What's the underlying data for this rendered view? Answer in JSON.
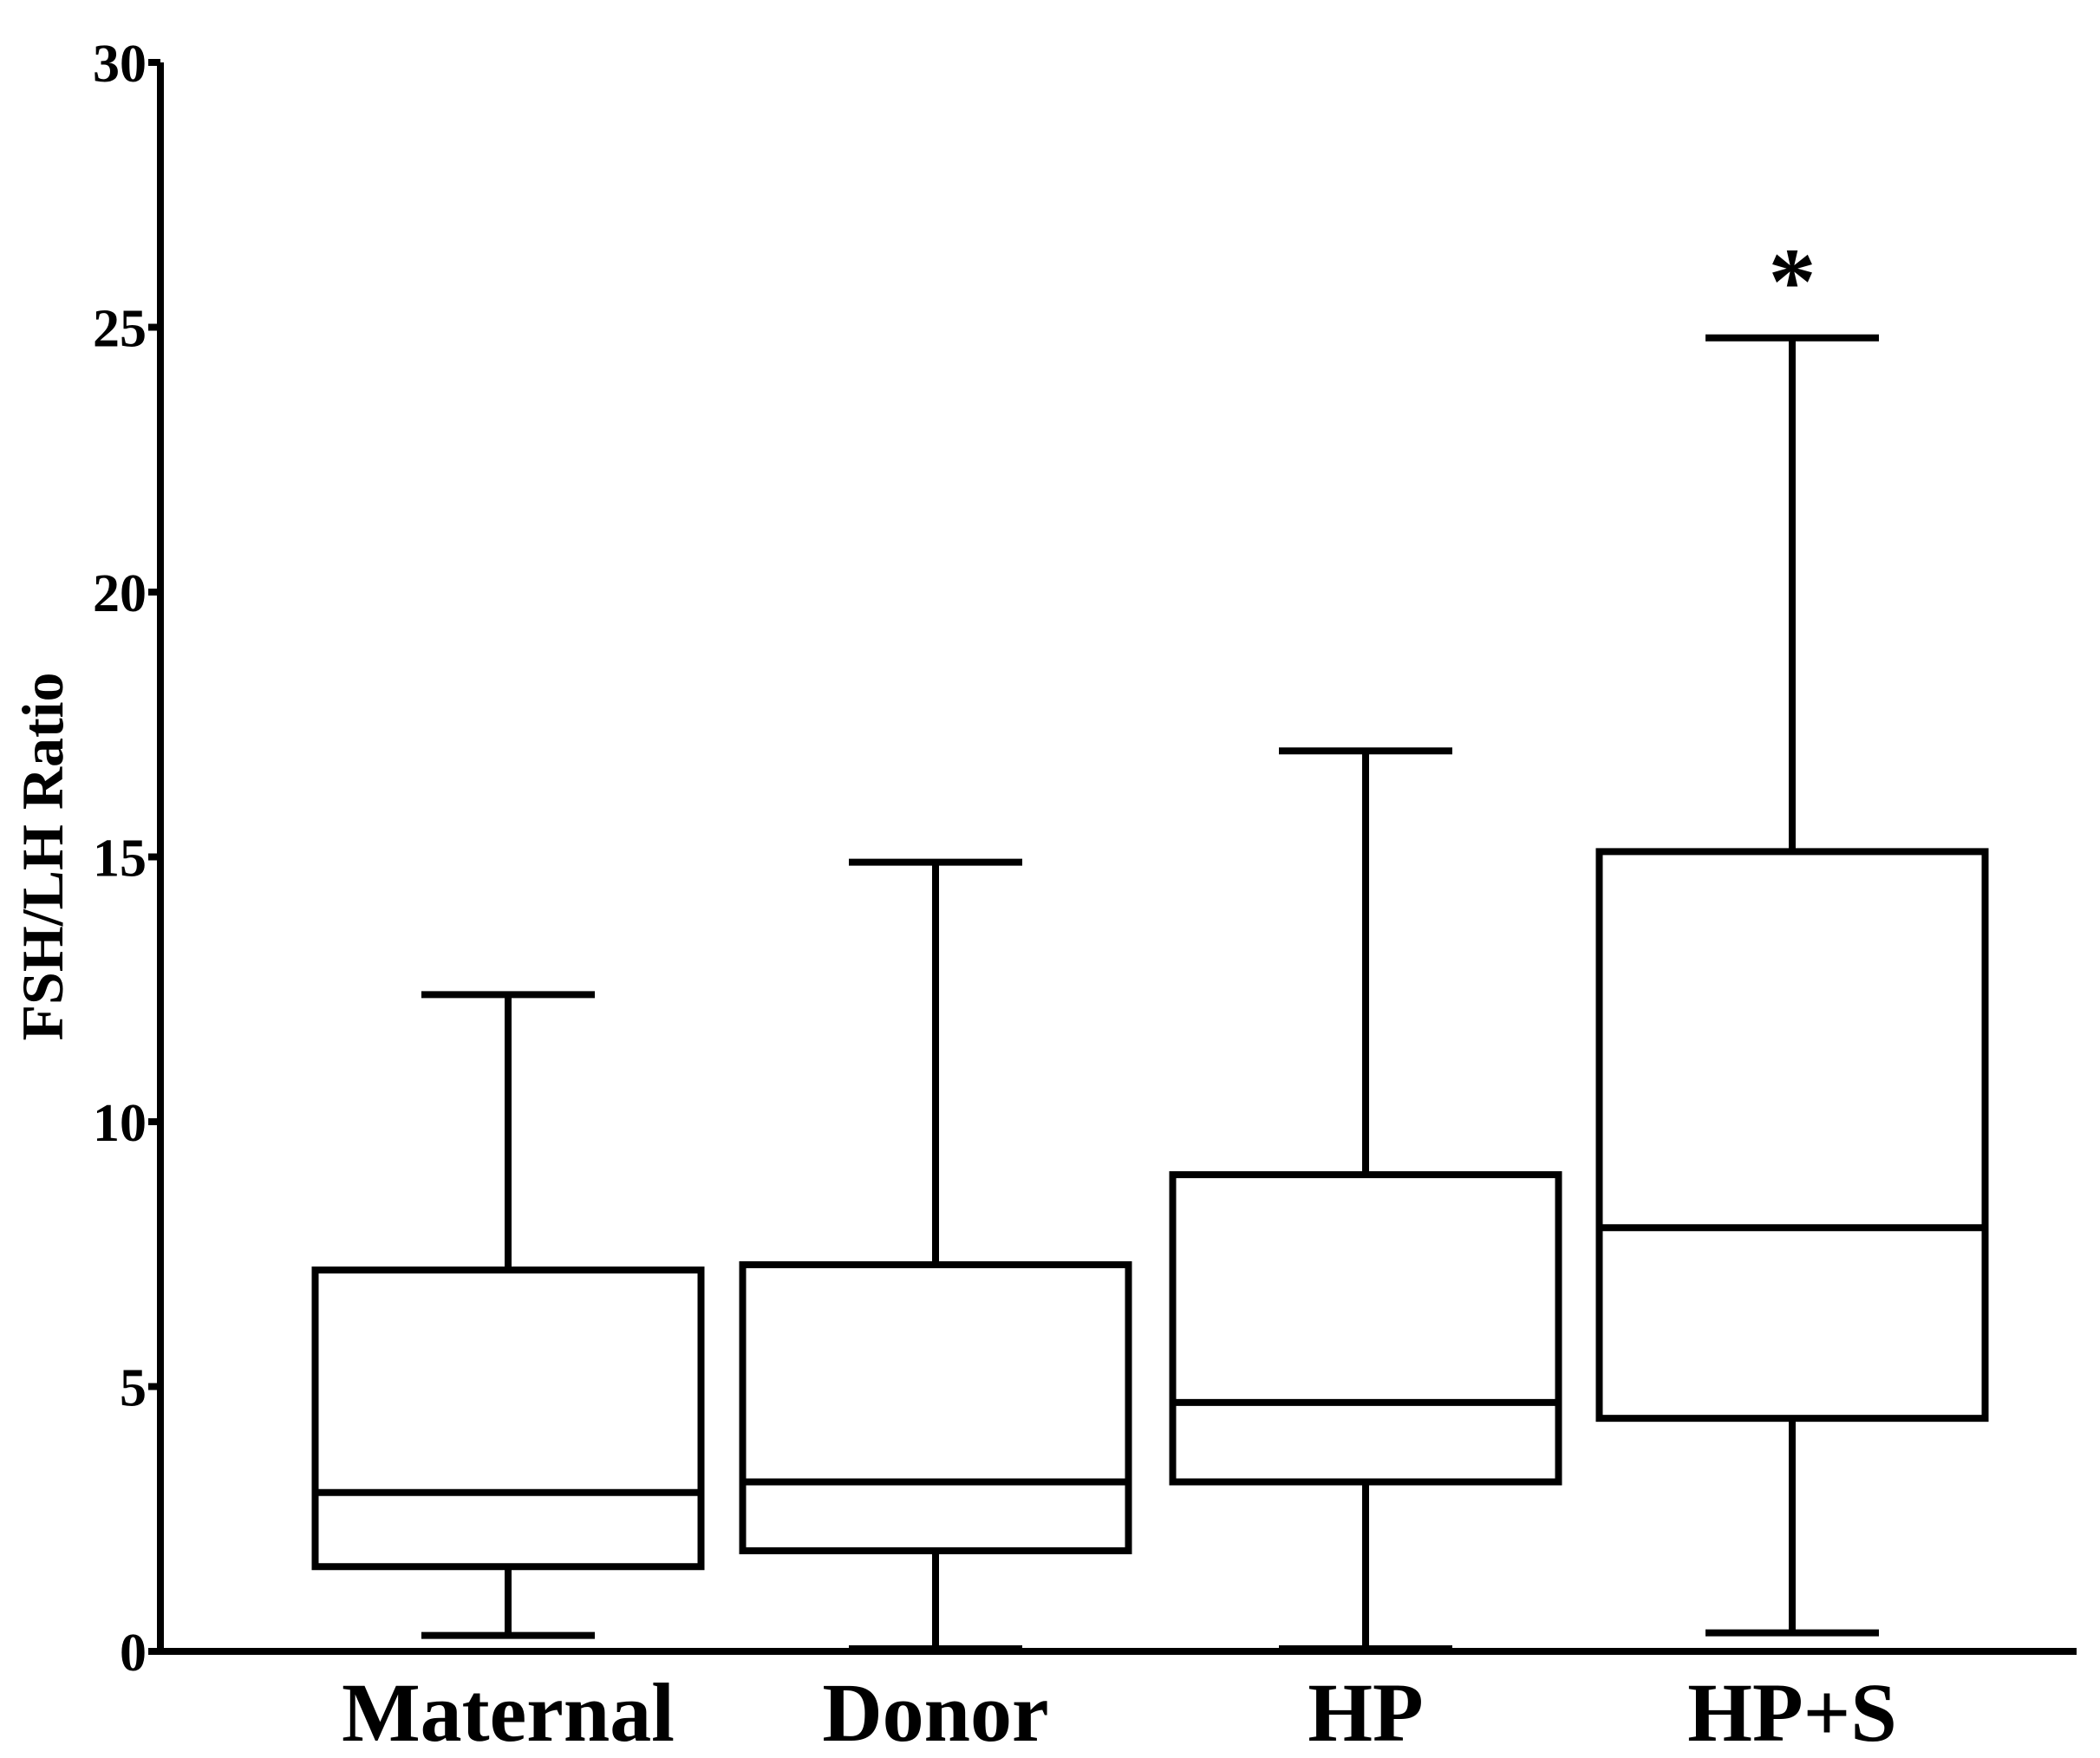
{
  "chart_data": {
    "type": "boxplot",
    "title": "",
    "xlabel": "",
    "ylabel": "FSH/LH Ratio",
    "ylim": [
      0,
      30
    ],
    "yticks": [
      "0",
      "5",
      "10",
      "15",
      "20",
      "25",
      "30"
    ],
    "grid": false,
    "legend": "none",
    "categories": [
      "Maternal",
      "Donor",
      "HP",
      "HP+S"
    ],
    "boxes": [
      {
        "category": "Maternal",
        "min": 0.3,
        "q1": 1.6,
        "median": 3.0,
        "q3": 7.2,
        "max": 12.4,
        "annotation": ""
      },
      {
        "category": "Donor",
        "min": 0.05,
        "q1": 1.9,
        "median": 3.2,
        "q3": 7.3,
        "max": 14.9,
        "annotation": ""
      },
      {
        "category": "HP",
        "min": 0.05,
        "q1": 3.2,
        "median": 4.7,
        "q3": 9.0,
        "max": 17.0,
        "annotation": ""
      },
      {
        "category": "HP+S",
        "min": 0.35,
        "q1": 4.4,
        "median": 8.0,
        "q3": 15.1,
        "max": 24.8,
        "annotation": "*"
      }
    ]
  }
}
